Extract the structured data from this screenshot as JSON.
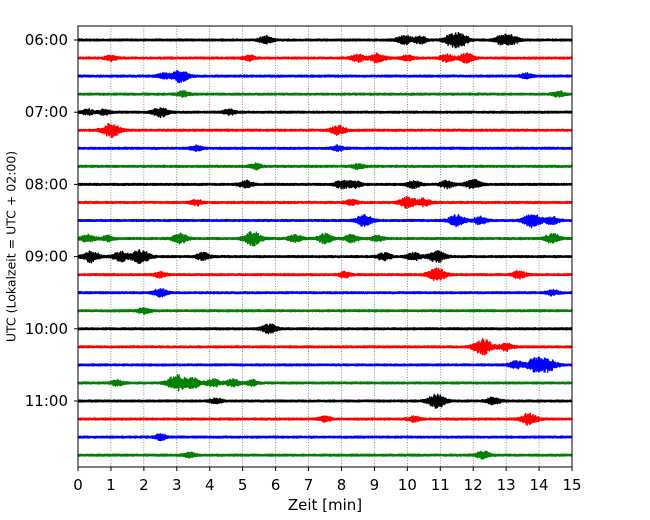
{
  "chart_data": {
    "type": "line",
    "xlabel": "Zeit  [min]",
    "ylabel": "UTC (Lokalzeit = UTC + 02:00)",
    "xlim": [
      0,
      15
    ],
    "x_ticks": [
      "0",
      "1",
      "2",
      "3",
      "4",
      "5",
      "6",
      "7",
      "8",
      "9",
      "10",
      "11",
      "12",
      "13",
      "14",
      "15"
    ],
    "y_tick_labels": [
      "06:00",
      "07:00",
      "08:00",
      "09:00",
      "10:00",
      "11:00"
    ],
    "grid": "vertical dotted",
    "trace_minutes": 15,
    "colors": [
      "#000000",
      "#ff0000",
      "#0000ff",
      "#008000"
    ],
    "series": [
      {
        "start": "06:00",
        "color": "#000000",
        "bursts": [
          {
            "t": 5.7,
            "a": 4
          },
          {
            "t": 9.9,
            "a": 5
          },
          {
            "t": 10.4,
            "a": 4
          },
          {
            "t": 11.4,
            "a": 7
          },
          {
            "t": 11.7,
            "a": 4
          },
          {
            "t": 12.9,
            "a": 5
          },
          {
            "t": 13.2,
            "a": 4
          }
        ]
      },
      {
        "start": "06:15",
        "color": "#ff0000",
        "bursts": [
          {
            "t": 1.0,
            "a": 3
          },
          {
            "t": 5.2,
            "a": 3
          },
          {
            "t": 8.5,
            "a": 4
          },
          {
            "t": 9.1,
            "a": 5
          },
          {
            "t": 10.0,
            "a": 3
          },
          {
            "t": 11.2,
            "a": 4
          },
          {
            "t": 11.8,
            "a": 5
          }
        ]
      },
      {
        "start": "06:30",
        "color": "#0000ff",
        "bursts": [
          {
            "t": 2.6,
            "a": 3
          },
          {
            "t": 3.1,
            "a": 6
          },
          {
            "t": 13.6,
            "a": 3
          }
        ]
      },
      {
        "start": "06:45",
        "color": "#008000",
        "bursts": [
          {
            "t": 3.2,
            "a": 3
          },
          {
            "t": 14.6,
            "a": 3
          }
        ]
      },
      {
        "start": "07:00",
        "color": "#000000",
        "bursts": [
          {
            "t": 0.3,
            "a": 3
          },
          {
            "t": 0.8,
            "a": 3
          },
          {
            "t": 2.5,
            "a": 5
          },
          {
            "t": 4.6,
            "a": 3
          }
        ]
      },
      {
        "start": "07:15",
        "color": "#ff0000",
        "bursts": [
          {
            "t": 1.0,
            "a": 7
          },
          {
            "t": 7.9,
            "a": 5
          }
        ]
      },
      {
        "start": "07:30",
        "color": "#0000ff",
        "bursts": [
          {
            "t": 3.6,
            "a": 3
          },
          {
            "t": 7.9,
            "a": 3
          }
        ]
      },
      {
        "start": "07:45",
        "color": "#008000",
        "bursts": [
          {
            "t": 5.4,
            "a": 3
          },
          {
            "t": 8.5,
            "a": 3
          }
        ]
      },
      {
        "start": "08:00",
        "color": "#000000",
        "bursts": [
          {
            "t": 5.1,
            "a": 4
          },
          {
            "t": 8.0,
            "a": 4
          },
          {
            "t": 8.4,
            "a": 4
          },
          {
            "t": 10.2,
            "a": 4
          },
          {
            "t": 11.2,
            "a": 4
          },
          {
            "t": 12.0,
            "a": 5
          }
        ]
      },
      {
        "start": "08:15",
        "color": "#ff0000",
        "bursts": [
          {
            "t": 3.6,
            "a": 3
          },
          {
            "t": 8.3,
            "a": 3
          },
          {
            "t": 10.0,
            "a": 6
          },
          {
            "t": 10.5,
            "a": 4
          }
        ]
      },
      {
        "start": "08:30",
        "color": "#0000ff",
        "bursts": [
          {
            "t": 8.7,
            "a": 6
          },
          {
            "t": 11.5,
            "a": 6
          },
          {
            "t": 12.2,
            "a": 4
          },
          {
            "t": 13.8,
            "a": 7
          },
          {
            "t": 14.4,
            "a": 4
          }
        ]
      },
      {
        "start": "08:45",
        "color": "#008000",
        "bursts": [
          {
            "t": 0.3,
            "a": 4
          },
          {
            "t": 0.9,
            "a": 3
          },
          {
            "t": 3.1,
            "a": 5
          },
          {
            "t": 5.3,
            "a": 7
          },
          {
            "t": 6.6,
            "a": 4
          },
          {
            "t": 7.5,
            "a": 5
          },
          {
            "t": 8.3,
            "a": 4
          },
          {
            "t": 9.1,
            "a": 3
          },
          {
            "t": 14.4,
            "a": 5
          }
        ]
      },
      {
        "start": "09:00",
        "color": "#000000",
        "bursts": [
          {
            "t": 0.4,
            "a": 6
          },
          {
            "t": 1.3,
            "a": 5
          },
          {
            "t": 1.9,
            "a": 7
          },
          {
            "t": 3.8,
            "a": 4
          },
          {
            "t": 9.3,
            "a": 4
          },
          {
            "t": 10.2,
            "a": 4
          },
          {
            "t": 10.9,
            "a": 6
          }
        ]
      },
      {
        "start": "09:15",
        "color": "#ff0000",
        "bursts": [
          {
            "t": 2.5,
            "a": 3
          },
          {
            "t": 8.1,
            "a": 3
          },
          {
            "t": 10.9,
            "a": 7
          },
          {
            "t": 13.4,
            "a": 4
          }
        ]
      },
      {
        "start": "09:30",
        "color": "#0000ff",
        "bursts": [
          {
            "t": 2.5,
            "a": 4
          },
          {
            "t": 14.4,
            "a": 3
          }
        ]
      },
      {
        "start": "09:45",
        "color": "#008000",
        "bursts": [
          {
            "t": 2.0,
            "a": 3
          }
        ]
      },
      {
        "start": "10:00",
        "color": "#000000",
        "bursts": [
          {
            "t": 5.8,
            "a": 5
          }
        ]
      },
      {
        "start": "10:15",
        "color": "#ff0000",
        "bursts": [
          {
            "t": 12.3,
            "a": 8
          },
          {
            "t": 13.0,
            "a": 4
          }
        ]
      },
      {
        "start": "10:30",
        "color": "#0000ff",
        "bursts": [
          {
            "t": 13.3,
            "a": 4
          },
          {
            "t": 13.9,
            "a": 7
          },
          {
            "t": 14.3,
            "a": 6
          }
        ]
      },
      {
        "start": "10:45",
        "color": "#008000",
        "bursts": [
          {
            "t": 1.2,
            "a": 3
          },
          {
            "t": 3.0,
            "a": 8
          },
          {
            "t": 3.5,
            "a": 5
          },
          {
            "t": 4.1,
            "a": 4
          },
          {
            "t": 4.7,
            "a": 4
          },
          {
            "t": 5.3,
            "a": 3
          }
        ]
      },
      {
        "start": "11:00",
        "color": "#000000",
        "bursts": [
          {
            "t": 4.2,
            "a": 3
          },
          {
            "t": 10.9,
            "a": 7
          },
          {
            "t": 12.6,
            "a": 4
          }
        ]
      },
      {
        "start": "11:15",
        "color": "#ff0000",
        "bursts": [
          {
            "t": 7.5,
            "a": 3
          },
          {
            "t": 10.2,
            "a": 3
          },
          {
            "t": 13.7,
            "a": 6
          }
        ]
      },
      {
        "start": "11:30",
        "color": "#0000ff",
        "bursts": [
          {
            "t": 2.5,
            "a": 3
          }
        ]
      },
      {
        "start": "11:45",
        "color": "#008000",
        "bursts": [
          {
            "t": 3.4,
            "a": 3
          },
          {
            "t": 12.3,
            "a": 4
          }
        ]
      }
    ]
  }
}
